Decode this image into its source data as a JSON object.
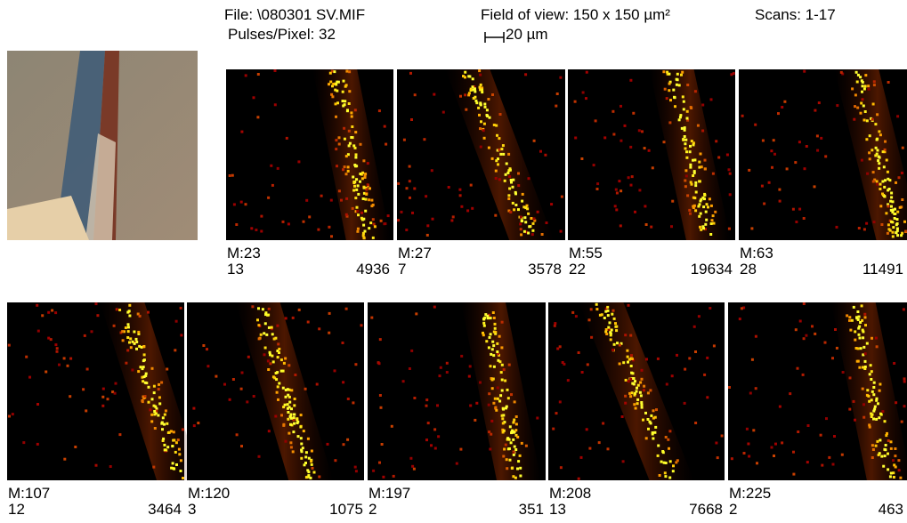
{
  "header": {
    "file": "File: \\080301 SV.MIF",
    "pulses": "Pulses/Pixel: 32",
    "field_of_view": "Field of view: 150 x 150 µm²",
    "scale_bar": "20 µm",
    "scans": "Scans: 1-17"
  },
  "panels": [
    {
      "mass": "M:23",
      "min": 13,
      "max": 4936
    },
    {
      "mass": "M:27",
      "min": 7,
      "max": 3578
    },
    {
      "mass": "M:55",
      "min": 22,
      "max": 19634
    },
    {
      "mass": "M:63",
      "min": 28,
      "max": 11491
    },
    {
      "mass": "M:107",
      "min": 12,
      "max": 3464
    },
    {
      "mass": "M:120",
      "min": 3,
      "max": 1075
    },
    {
      "mass": "M:197",
      "min": 2,
      "max": 351
    },
    {
      "mass": "M:208",
      "min": 13,
      "max": 7668
    },
    {
      "mass": "M:225",
      "min": 2,
      "max": 463
    }
  ]
}
